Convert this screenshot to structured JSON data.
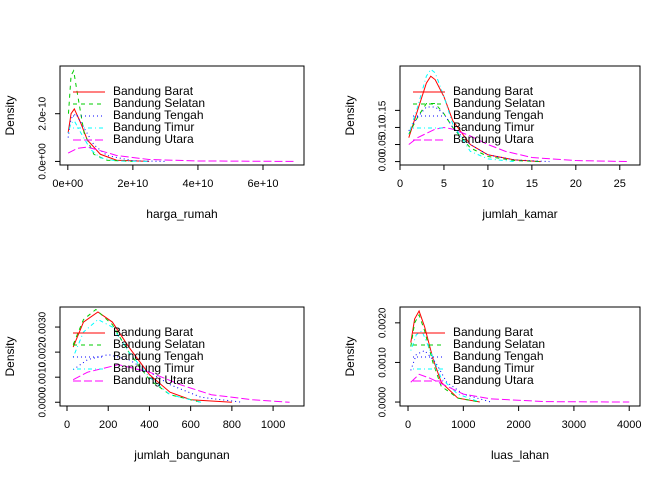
{
  "chart_data": [
    {
      "type": "line",
      "xlabel": "harga_rumah",
      "ylabel": "Density",
      "legend": "topleft",
      "xlim": [
        -2400000000.0,
        72600000000.0
      ],
      "ylim": [
        -1.5e-11,
        4e-10
      ],
      "xticks": [
        {
          "value": 0,
          "label": "0e+00"
        },
        {
          "value": 20000000000.0,
          "label": "2e+10"
        },
        {
          "value": 40000000000.0,
          "label": "4e+10"
        },
        {
          "value": 60000000000.0,
          "label": "6e+10"
        }
      ],
      "yticks": [
        {
          "value": 0,
          "label": "0.0e+00"
        },
        {
          "value": 2e-10,
          "label": "2.0e-10"
        }
      ],
      "series": [
        {
          "name": "Bandung Barat",
          "color": "#FF0000",
          "linestyle": "solid",
          "x": [
            100000000.0,
            1000000000.0,
            2000000000.0,
            4000000000.0,
            6000000000.0,
            10000000000.0,
            15000000000.0,
            25000000000.0
          ],
          "values": [
            1.2e-10,
            2e-10,
            2.2e-10,
            1.6e-10,
            9e-11,
            3e-11,
            5e-12,
            0
          ]
        },
        {
          "name": "Bandung Selatan",
          "color": "#00CD00",
          "linestyle": "dashed",
          "x": [
            200000000.0,
            1000000000.0,
            1800000000.0,
            3000000000.0,
            5000000000.0,
            8000000000.0,
            12000000000.0,
            20000000000.0
          ],
          "values": [
            2e-10,
            3.6e-10,
            3.8e-10,
            2.8e-10,
            1.2e-10,
            3e-11,
            5e-12,
            0
          ]
        },
        {
          "name": "Bandung Tengah",
          "color": "#0000FF",
          "linestyle": "dotted",
          "x": [
            100000000.0,
            1000000000.0,
            2500000000.0,
            5000000000.0,
            8000000000.0,
            12000000000.0,
            20000000000.0,
            30000000000.0
          ],
          "values": [
            1e-10,
            1.8e-10,
            2e-10,
            1.4e-10,
            7e-11,
            2.5e-11,
            3e-12,
            0
          ]
        },
        {
          "name": "Bandung Timur",
          "color": "#00FFFF",
          "linestyle": "dotdash",
          "x": [
            100000000.0,
            1000000000.0,
            2000000000.0,
            4000000000.0,
            7000000000.0,
            10000000000.0,
            15000000000.0,
            25000000000.0
          ],
          "values": [
            1.2e-10,
            1.6e-10,
            1.7e-10,
            1.2e-10,
            5e-11,
            1.5e-11,
            2e-12,
            0
          ]
        },
        {
          "name": "Bandung Utara",
          "color": "#FF00FF",
          "linestyle": "longdash",
          "x": [
            100000000.0,
            3000000000.0,
            6000000000.0,
            10000000000.0,
            15000000000.0,
            25000000000.0,
            40000000000.0,
            70000000000.0
          ],
          "values": [
            3.5e-11,
            5.5e-11,
            6e-11,
            4.5e-11,
            2.5e-11,
            8e-12,
            2e-12,
            0
          ]
        }
      ]
    },
    {
      "type": "line",
      "xlabel": "jumlah_kamar",
      "ylabel": "Density",
      "legend": "topleft",
      "xlim": [
        0,
        27.3
      ],
      "ylim": [
        -0.01,
        0.28
      ],
      "xticks": [
        0,
        5,
        10,
        15,
        20,
        25
      ],
      "yticks": [
        {
          "value": 0,
          "label": "0.00"
        },
        {
          "value": 0.05,
          "label": "0.05"
        },
        {
          "value": 0.1,
          "label": "0.10"
        },
        {
          "value": 0.15,
          "label": "0.15"
        }
      ],
      "series": [
        {
          "name": "Bandung Barat",
          "color": "#FF0000",
          "linestyle": "solid",
          "x": [
            1,
            2,
            3,
            3.5,
            4,
            5,
            6,
            8,
            10,
            13,
            16
          ],
          "values": [
            0.07,
            0.15,
            0.23,
            0.25,
            0.24,
            0.19,
            0.12,
            0.05,
            0.02,
            0.005,
            0
          ]
        },
        {
          "name": "Bandung Selatan",
          "color": "#00CD00",
          "linestyle": "dashed",
          "x": [
            1,
            2,
            3,
            4,
            5,
            6,
            8,
            10,
            13,
            16
          ],
          "values": [
            0.08,
            0.13,
            0.17,
            0.17,
            0.14,
            0.1,
            0.04,
            0.015,
            0.003,
            0
          ]
        },
        {
          "name": "Bandung Tengah",
          "color": "#0000FF",
          "linestyle": "dotted",
          "x": [
            1,
            2,
            3,
            4,
            5,
            6,
            8,
            10,
            13,
            17
          ],
          "values": [
            0.09,
            0.13,
            0.16,
            0.16,
            0.14,
            0.1,
            0.05,
            0.02,
            0.005,
            0
          ]
        },
        {
          "name": "Bandung Timur",
          "color": "#00FFFF",
          "linestyle": "dotdash",
          "x": [
            1,
            2,
            3,
            3.5,
            4,
            5,
            6,
            8,
            10,
            13
          ],
          "values": [
            0.08,
            0.16,
            0.25,
            0.27,
            0.26,
            0.19,
            0.11,
            0.03,
            0.008,
            0
          ]
        },
        {
          "name": "Bandung Utara",
          "color": "#FF00FF",
          "linestyle": "longdash",
          "x": [
            1,
            2,
            4,
            5,
            6,
            8,
            10,
            12,
            15,
            20,
            26
          ],
          "values": [
            0.05,
            0.07,
            0.095,
            0.1,
            0.095,
            0.075,
            0.05,
            0.03,
            0.012,
            0.003,
            0
          ]
        }
      ]
    },
    {
      "type": "line",
      "xlabel": "jumlah_bangunan",
      "ylabel": "Density",
      "legend": "topleft",
      "xlim": [
        -34,
        1150
      ],
      "ylim": [
        -0.00015,
        0.0038
      ],
      "xticks": [
        0,
        200,
        400,
        600,
        800,
        1000
      ],
      "yticks": [
        {
          "value": 0,
          "label": "0.0000"
        },
        {
          "value": 0.001,
          "label": "0.0010"
        },
        {
          "value": 0.002,
          "label": "0.0020"
        },
        {
          "value": 0.003,
          "label": "0.0030"
        }
      ],
      "series": [
        {
          "name": "Bandung Barat",
          "color": "#FF0000",
          "linestyle": "solid",
          "x": [
            30,
            80,
            150,
            220,
            300,
            400,
            500,
            600,
            800
          ],
          "values": [
            0.0022,
            0.0032,
            0.0036,
            0.0032,
            0.0022,
            0.0011,
            0.0004,
            0.0001,
            0
          ]
        },
        {
          "name": "Bandung Selatan",
          "color": "#00CD00",
          "linestyle": "dashed",
          "x": [
            30,
            80,
            140,
            220,
            300,
            400,
            500,
            650
          ],
          "values": [
            0.0023,
            0.0033,
            0.0037,
            0.0031,
            0.002,
            0.0009,
            0.0003,
            0
          ]
        },
        {
          "name": "Bandung Tengah",
          "color": "#0000FF",
          "linestyle": "dotted",
          "x": [
            30,
            100,
            200,
            300,
            400,
            500,
            650,
            850
          ],
          "values": [
            0.0013,
            0.0017,
            0.0019,
            0.0017,
            0.0012,
            0.0007,
            0.0002,
            0
          ]
        },
        {
          "name": "Bandung Timur",
          "color": "#00FFFF",
          "linestyle": "dotdash",
          "x": [
            30,
            80,
            150,
            220,
            300,
            400,
            500,
            650
          ],
          "values": [
            0.0018,
            0.0028,
            0.0033,
            0.003,
            0.002,
            0.001,
            0.0003,
            0
          ]
        },
        {
          "name": "Bandung Utara",
          "color": "#FF00FF",
          "linestyle": "longdash",
          "x": [
            30,
            100,
            250,
            400,
            550,
            700,
            900,
            1080
          ],
          "values": [
            0.0009,
            0.0012,
            0.0015,
            0.0012,
            0.0007,
            0.0003,
            0.0001,
            0
          ]
        }
      ]
    },
    {
      "type": "line",
      "xlabel": "luas_lahan",
      "ylabel": "Density",
      "legend": "topleft",
      "xlim": [
        -145,
        4195
      ],
      "ylim": [
        -0.0001,
        0.0024
      ],
      "xticks": [
        0,
        1000,
        2000,
        3000,
        4000
      ],
      "yticks": [
        {
          "value": 0,
          "label": "0.0000"
        },
        {
          "value": 0.001,
          "label": "0.0010"
        },
        {
          "value": 0.002,
          "label": "0.0020"
        }
      ],
      "series": [
        {
          "name": "Bandung Barat",
          "color": "#FF0000",
          "linestyle": "solid",
          "x": [
            50,
            120,
            200,
            300,
            450,
            600,
            900,
            1300
          ],
          "values": [
            0.0015,
            0.0021,
            0.0023,
            0.0019,
            0.0011,
            0.0005,
            0.0001,
            0
          ]
        },
        {
          "name": "Bandung Selatan",
          "color": "#00CD00",
          "linestyle": "dashed",
          "x": [
            50,
            120,
            200,
            300,
            450,
            600,
            900,
            1300
          ],
          "values": [
            0.0014,
            0.002,
            0.0022,
            0.0018,
            0.001,
            0.0004,
            0.0001,
            0
          ]
        },
        {
          "name": "Bandung Tengah",
          "color": "#0000FF",
          "linestyle": "dotted",
          "x": [
            50,
            150,
            300,
            500,
            700,
            1000,
            1500
          ],
          "values": [
            0.0008,
            0.0012,
            0.0013,
            0.001,
            0.0005,
            0.0002,
            0
          ]
        },
        {
          "name": "Bandung Timur",
          "color": "#00FFFF",
          "linestyle": "dotdash",
          "x": [
            50,
            150,
            250,
            400,
            600,
            900,
            1300
          ],
          "values": [
            0.0013,
            0.0017,
            0.0018,
            0.0013,
            0.0006,
            0.0002,
            0
          ]
        },
        {
          "name": "Bandung Utara",
          "color": "#FF00FF",
          "linestyle": "longdash",
          "x": [
            50,
            200,
            400,
            700,
            1000,
            1500,
            2500,
            4000
          ],
          "values": [
            0.0005,
            0.0007,
            0.0006,
            0.0004,
            0.0002,
            8e-05,
            1e-05,
            0
          ]
        }
      ]
    }
  ]
}
